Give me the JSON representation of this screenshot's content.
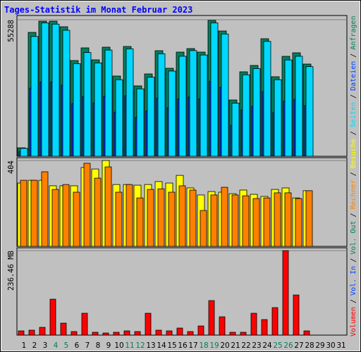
{
  "chart_data": [
    {
      "type": "bar",
      "title": "Tages-Statistik im Monat Februar 2023",
      "ylim": [
        0,
        55288
      ],
      "yticks": [
        55288
      ],
      "series": [
        {
          "name": "Anfragen",
          "color": "#00805c",
          "values": [
            3420,
            50159,
            54718,
            54718,
            52438,
            38759,
            43889,
            39044,
            44174,
            32489,
            44459,
            28499,
            33344,
            42749,
            35624,
            42179,
            43604,
            42179,
            55003,
            50729,
            22799,
            34199,
            36764,
            47594,
            32204,
            40469,
            41894,
            37334,
            null,
            null,
            null
          ]
        },
        {
          "name": "Dateien",
          "color": "#0040ff",
          "values": [
            1900,
            27600,
            30100,
            30100,
            28800,
            21300,
            24100,
            21500,
            24300,
            17900,
            24500,
            15700,
            18300,
            23500,
            19600,
            23200,
            24000,
            23200,
            30300,
            27900,
            12500,
            18800,
            20200,
            26200,
            17700,
            22300,
            23000,
            20500,
            null,
            null,
            null
          ]
        },
        {
          "name": "Seiten",
          "color": "#00d8ff",
          "values": [
            3200,
            48500,
            54000,
            53500,
            51000,
            37500,
            42000,
            37800,
            43000,
            31000,
            43500,
            27300,
            32000,
            41500,
            34500,
            40500,
            42800,
            41000,
            54000,
            49500,
            21500,
            33000,
            35500,
            46500,
            31000,
            39000,
            40500,
            36300,
            null,
            null,
            null
          ]
        }
      ]
    },
    {
      "type": "bar",
      "ylim": [
        0,
        404
      ],
      "yticks": [
        404
      ],
      "series": [
        {
          "name": "Besuche",
          "color": "#ffff00",
          "values": [
            298,
            311,
            311,
            285,
            285,
            285,
            371,
            364,
            404,
            291,
            291,
            288,
            291,
            305,
            298,
            334,
            275,
            242,
            258,
            255,
            248,
            265,
            245,
            235,
            268,
            275,
            228,
            262,
            null,
            null,
            null
          ]
        },
        {
          "name": "Rechner",
          "color": "#ff8000",
          "values": [
            311,
            311,
            351,
            268,
            291,
            255,
            391,
            321,
            374,
            255,
            291,
            228,
            268,
            271,
            255,
            285,
            265,
            169,
            242,
            278,
            242,
            238,
            225,
            228,
            252,
            252,
            225,
            262,
            null,
            null,
            null
          ]
        }
      ]
    },
    {
      "type": "bar",
      "ylim": [
        0,
        236.46
      ],
      "yticks": [
        {
          "value": 236.46,
          "label": "236.46 MB"
        }
      ],
      "legend_extra": [
        {
          "name": "Vol. Out",
          "color": "#00805c"
        },
        {
          "name": "Vol. In",
          "color": "#0040ff"
        }
      ],
      "legend_separator": "/",
      "series": [
        {
          "name": "Volumen",
          "color": "#ff0000",
          "values": [
            11.8,
            13.8,
            21.7,
            100.5,
            33.5,
            9.9,
            61.1,
            7.9,
            5.9,
            7.9,
            11.8,
            9.9,
            61.1,
            13.8,
            11.8,
            19.7,
            9.9,
            25.6,
            96.6,
            51.2,
            7.9,
            7.9,
            61.1,
            43.4,
            76.9,
            236.46,
            112.3,
            11.8,
            null,
            null,
            null
          ]
        }
      ],
      "categories": [
        "1",
        "2",
        "3",
        "4",
        "5",
        "6",
        "7",
        "8",
        "9",
        "10",
        "11",
        "12",
        "13",
        "14",
        "15",
        "16",
        "17",
        "18",
        "19",
        "20",
        "21",
        "22",
        "23",
        "24",
        "25",
        "26",
        "27",
        "28",
        "29",
        "30",
        "31"
      ],
      "category_colors": [
        "#000000",
        "#000000",
        "#000000",
        "#00805c",
        "#00805c",
        "#000000",
        "#000000",
        "#000000",
        "#000000",
        "#000000",
        "#00805c",
        "#00805c",
        "#000000",
        "#000000",
        "#000000",
        "#000000",
        "#000000",
        "#00805c",
        "#00805c",
        "#000000",
        "#000000",
        "#000000",
        "#000000",
        "#000000",
        "#00805c",
        "#00805c",
        "#000000",
        "#000000",
        "#000000",
        "#000000",
        "#000000"
      ]
    }
  ]
}
